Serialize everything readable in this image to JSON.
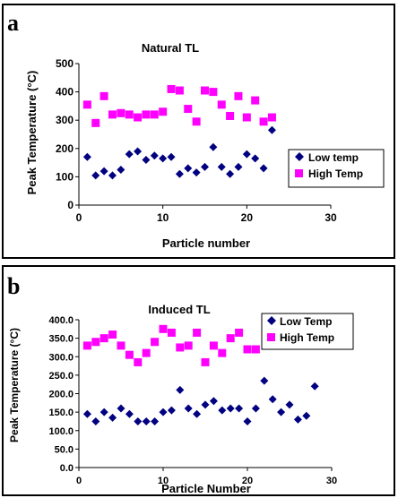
{
  "panels": [
    {
      "letter": "a",
      "legend_position": "right",
      "chart_data": {
        "type": "scatter",
        "title": "Natural TL",
        "xlabel": "Particle number",
        "ylabel": "Peak Temperature (°C)",
        "xlim": [
          0,
          30
        ],
        "ylim": [
          0,
          500
        ],
        "xticks": [
          0,
          10,
          20,
          30
        ],
        "xtick_labels": [
          "0",
          "10",
          "20",
          "30"
        ],
        "yticks": [
          0,
          100,
          200,
          300,
          400,
          500
        ],
        "ytick_labels": [
          "0",
          "100",
          "200",
          "300",
          "400",
          "500"
        ],
        "grid": false,
        "series": [
          {
            "name": "Low temp",
            "marker": "diamond",
            "color": "#000080",
            "x": [
              1,
              2,
              3,
              4,
              5,
              6,
              7,
              8,
              9,
              10,
              11,
              12,
              13,
              14,
              15,
              16,
              17,
              18,
              19,
              20,
              21,
              22,
              23
            ],
            "y": [
              170,
              105,
              120,
              105,
              125,
              180,
              190,
              160,
              175,
              165,
              170,
              110,
              130,
              115,
              135,
              205,
              135,
              110,
              135,
              180,
              165,
              130,
              265
            ]
          },
          {
            "name": "High Temp",
            "marker": "square",
            "color": "#ff00ff",
            "x": [
              1,
              2,
              3,
              4,
              5,
              6,
              7,
              8,
              9,
              10,
              11,
              12,
              13,
              14,
              15,
              16,
              17,
              18,
              19,
              20,
              21,
              22,
              23
            ],
            "y": [
              355,
              290,
              385,
              320,
              325,
              320,
              310,
              320,
              320,
              330,
              410,
              405,
              340,
              295,
              405,
              400,
              355,
              315,
              385,
              310,
              370,
              295,
              310
            ]
          }
        ]
      }
    },
    {
      "letter": "b",
      "legend_position": "top-right",
      "chart_data": {
        "type": "scatter",
        "title": "Induced TL",
        "xlabel": "Particle Number",
        "ylabel": "Peak Temperature (°C)",
        "xlim": [
          0,
          30
        ],
        "ylim": [
          0,
          400
        ],
        "xticks": [
          0,
          10,
          20,
          30
        ],
        "xtick_labels": [
          "0",
          "10",
          "20",
          "30"
        ],
        "yticks": [
          0,
          50,
          100,
          150,
          200,
          250,
          300,
          350,
          400
        ],
        "ytick_labels": [
          "0.0",
          "50.0",
          "100.0",
          "150.0",
          "200.0",
          "250.0",
          "300.0",
          "350.0",
          "400.0"
        ],
        "grid": false,
        "series": [
          {
            "name": "Low Temp",
            "marker": "diamond",
            "color": "#000080",
            "x": [
              1,
              2,
              3,
              4,
              5,
              6,
              7,
              8,
              9,
              10,
              11,
              12,
              13,
              14,
              15,
              16,
              17,
              18,
              19,
              20,
              21,
              22,
              23,
              24,
              25,
              26,
              27,
              28
            ],
            "y": [
              145,
              125,
              150,
              135,
              160,
              145,
              125,
              125,
              125,
              150,
              155,
              210,
              160,
              145,
              170,
              180,
              155,
              160,
              160,
              125,
              160,
              235,
              185,
              150,
              170,
              130,
              140,
              220
            ]
          },
          {
            "name": "High Temp",
            "marker": "square",
            "color": "#ff00ff",
            "x": [
              1,
              2,
              3,
              4,
              5,
              6,
              7,
              8,
              9,
              10,
              11,
              12,
              13,
              14,
              15,
              16,
              17,
              18,
              19,
              20,
              21
            ],
            "y": [
              330,
              340,
              350,
              360,
              330,
              305,
              285,
              310,
              340,
              375,
              365,
              325,
              330,
              365,
              285,
              330,
              310,
              350,
              365,
              320,
              320
            ]
          }
        ]
      }
    }
  ]
}
